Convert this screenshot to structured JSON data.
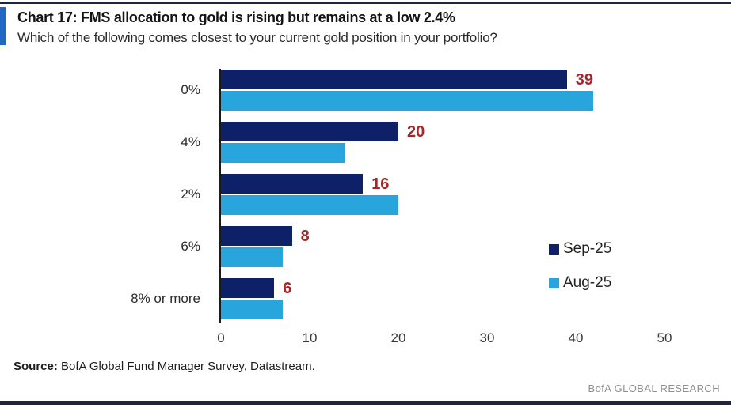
{
  "header": {
    "title": "Chart 17: FMS allocation to gold is rising but remains at a low 2.4%",
    "subtitle": "Which of the following comes closest to your current gold position in your portfolio?"
  },
  "chart_data": {
    "type": "bar",
    "orientation": "horizontal",
    "categories": [
      "0%",
      "4%",
      "2%",
      "6%",
      "8% or more"
    ],
    "series": [
      {
        "name": "Sep-25",
        "color": "#0d2068",
        "values": [
          39,
          20,
          16,
          8,
          6
        ]
      },
      {
        "name": "Aug-25",
        "color": "#29a5dd",
        "values": [
          42,
          14,
          20,
          7,
          7
        ]
      }
    ],
    "value_labels_series": "Sep-25",
    "value_label_color": "#a3282a",
    "x_ticks": [
      0,
      10,
      20,
      30,
      40,
      50
    ],
    "xlim": [
      0,
      50
    ],
    "grid": false,
    "legend_position": "middle-right",
    "xlabel": "",
    "ylabel": ""
  },
  "footer": {
    "source_label": "Source:",
    "source_text": " BofA Global Fund Manager Survey, Datastream.",
    "brand": "BofA GLOBAL RESEARCH"
  },
  "colors": {
    "accent_blue": "#2268c2",
    "rule_dark": "#23233a",
    "value_label_red": "#a3282a",
    "brand_gray": "#8f8f8f"
  }
}
